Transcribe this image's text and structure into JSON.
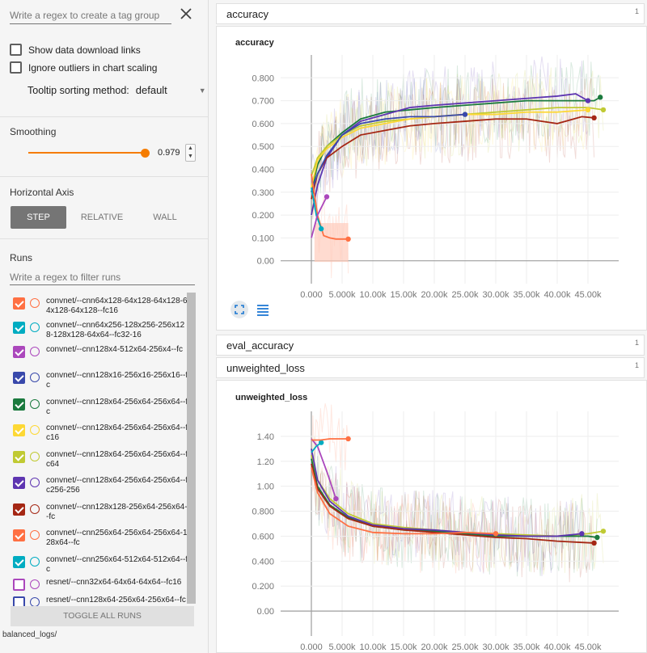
{
  "sidebar": {
    "tag_placeholder": "Write a regex to create a tag group",
    "show_download_label": "Show data download links",
    "ignore_outliers_label": "Ignore outliers in chart scaling",
    "tooltip_label": "Tooltip sorting method:",
    "tooltip_value": "default",
    "smoothing_title": "Smoothing",
    "smoothing_value": "0.979",
    "smoothing_fraction": 0.979,
    "horizontal_axis_title": "Horizontal Axis",
    "axis_buttons": [
      "STEP",
      "RELATIVE",
      "WALL"
    ],
    "axis_selected": "STEP",
    "runs_title": "Runs",
    "runs_placeholder": "Write a regex to filter runs",
    "runs": [
      {
        "name": "convnet/--cnn64x128-64x128-64x128-64x128-64x128--fc16",
        "color": "#ff7043",
        "checked": true
      },
      {
        "name": "convnet/--cnn64x256-128x256-256x128-128x128-64x64--fc32-16",
        "color": "#00acc1",
        "checked": true
      },
      {
        "name": "convnet/--cnn128x4-512x64-256x4--fc",
        "color": "#ab47bc",
        "checked": true
      },
      {
        "name": "convnet/--cnn128x16-256x16-256x16--fc",
        "color": "#3949ab",
        "checked": true
      },
      {
        "name": "convnet/--cnn128x64-256x64-256x64--fc",
        "color": "#1b7a3e",
        "checked": true
      },
      {
        "name": "convnet/--cnn128x64-256x64-256x64--fc16",
        "color": "#fdd835",
        "checked": true
      },
      {
        "name": "convnet/--cnn128x64-256x64-256x64--fc64",
        "color": "#c0ca33",
        "checked": true
      },
      {
        "name": "convnet/--cnn128x64-256x64-256x64--fc256-256",
        "color": "#5e35b1",
        "checked": true
      },
      {
        "name": "convnet/--cnn128x128-256x64-256x64--fc",
        "color": "#a52714",
        "checked": true
      },
      {
        "name": "convnet/--cnn256x64-256x64-256x64-128x64--fc",
        "color": "#ff7043",
        "checked": true
      },
      {
        "name": "convnet/--cnn256x64-512x64-512x64--fc",
        "color": "#00acc1",
        "checked": true
      },
      {
        "name": "resnet/--cnn32x64-64x64-64x64--fc16",
        "color": "#ab47bc",
        "checked": false
      },
      {
        "name": "resnet/--cnn128x64-256x64-256x64--fc",
        "color": "#3949ab",
        "checked": false
      }
    ],
    "toggle_all_label": "TOGGLE ALL RUNS",
    "logdir": "balanced_logs/"
  },
  "panels": [
    {
      "title": "accuracy",
      "count": "1"
    },
    {
      "title": "eval_accuracy",
      "count": "1"
    },
    {
      "title": "unweighted_loss",
      "count": "1"
    }
  ],
  "chart_data": [
    {
      "type": "line",
      "title": "accuracy",
      "xlabel": "",
      "ylabel": "",
      "x_ticks": [
        "0.000",
        "5.000k",
        "10.00k",
        "15.00k",
        "20.00k",
        "25.00k",
        "30.00k",
        "35.00k",
        "40.00k",
        "45.00k"
      ],
      "y_ticks": [
        "0.00",
        "0.100",
        "0.200",
        "0.300",
        "0.400",
        "0.500",
        "0.600",
        "0.700",
        "0.800"
      ],
      "xlim": [
        -5000,
        50000
      ],
      "ylim": [
        -0.1,
        0.9
      ],
      "grid": true,
      "series": [
        {
          "color": "#1b7a3e",
          "x": [
            0,
            1000,
            2500,
            5000,
            8000,
            12000,
            16000,
            20000,
            25000,
            30000,
            35000,
            40000,
            44000,
            46000,
            47000
          ],
          "y": [
            0.3,
            0.42,
            0.5,
            0.56,
            0.62,
            0.65,
            0.66,
            0.67,
            0.68,
            0.69,
            0.7,
            0.7,
            0.7,
            0.7,
            0.715
          ]
        },
        {
          "color": "#5e35b1",
          "x": [
            0,
            1000,
            2500,
            5000,
            8000,
            12000,
            16000,
            20000,
            25000,
            30000,
            35000,
            40000,
            43000,
            45000
          ],
          "y": [
            0.2,
            0.33,
            0.45,
            0.55,
            0.61,
            0.64,
            0.67,
            0.68,
            0.69,
            0.7,
            0.71,
            0.72,
            0.73,
            0.7
          ]
        },
        {
          "color": "#c0ca33",
          "x": [
            0,
            1000,
            2500,
            5000,
            8000,
            12000,
            16000,
            20000,
            25000,
            30000,
            35000,
            40000,
            45000,
            47500
          ],
          "y": [
            0.37,
            0.45,
            0.5,
            0.55,
            0.59,
            0.61,
            0.62,
            0.63,
            0.64,
            0.65,
            0.66,
            0.67,
            0.67,
            0.66
          ]
        },
        {
          "color": "#fdd835",
          "x": [
            0,
            1000,
            2500,
            5000,
            8000,
            12000,
            16000,
            20000,
            25000,
            30000,
            35000,
            40000,
            45000
          ],
          "y": [
            0.32,
            0.44,
            0.49,
            0.54,
            0.58,
            0.6,
            0.62,
            0.63,
            0.64,
            0.64,
            0.65,
            0.65,
            0.66
          ]
        },
        {
          "color": "#a52714",
          "x": [
            0,
            1000,
            2500,
            5000,
            8000,
            12000,
            16000,
            20000,
            25000,
            30000,
            35000,
            40000,
            44000,
            46000
          ],
          "y": [
            0.27,
            0.38,
            0.45,
            0.5,
            0.55,
            0.57,
            0.59,
            0.6,
            0.61,
            0.62,
            0.62,
            0.6,
            0.63,
            0.625
          ]
        },
        {
          "color": "#3949ab",
          "x": [
            0,
            1000,
            2500,
            5000,
            8000,
            12000,
            16000,
            20000,
            25000
          ],
          "y": [
            0.3,
            0.38,
            0.46,
            0.55,
            0.6,
            0.62,
            0.63,
            0.63,
            0.64
          ]
        },
        {
          "color": "#ff7043",
          "x": [
            0,
            1000,
            2000,
            3000,
            4000,
            5000,
            6000
          ],
          "y": [
            0.38,
            0.2,
            0.11,
            0.1,
            0.095,
            0.095,
            0.095
          ]
        },
        {
          "color": "#00acc1",
          "x": [
            0,
            800,
            1600
          ],
          "y": [
            0.32,
            0.2,
            0.14
          ]
        },
        {
          "color": "#ab47bc",
          "x": [
            0,
            1000,
            2500
          ],
          "y": [
            0.1,
            0.2,
            0.28
          ]
        }
      ]
    },
    {
      "type": "line",
      "title": "unweighted_loss",
      "xlabel": "",
      "ylabel": "",
      "x_ticks": [
        "0.000",
        "5.000k",
        "10.00k",
        "15.00k",
        "20.00k",
        "25.00k",
        "30.00k",
        "35.00k",
        "40.00k",
        "45.00k"
      ],
      "y_ticks": [
        "0.00",
        "0.200",
        "0.400",
        "0.600",
        "0.800",
        "1.00",
        "1.20",
        "1.40"
      ],
      "xlim": [
        -5000,
        50000
      ],
      "ylim": [
        -0.2,
        1.6
      ],
      "grid": true,
      "series": [
        {
          "color": "#c0ca33",
          "x": [
            0,
            1000,
            3000,
            6000,
            10000,
            15000,
            20000,
            25000,
            30000,
            35000,
            40000,
            45000,
            47500
          ],
          "y": [
            1.25,
            1.05,
            0.9,
            0.78,
            0.7,
            0.67,
            0.65,
            0.63,
            0.62,
            0.61,
            0.6,
            0.62,
            0.64
          ]
        },
        {
          "color": "#1b7a3e",
          "x": [
            0,
            1000,
            3000,
            6000,
            10000,
            15000,
            20000,
            25000,
            30000,
            35000,
            40000,
            45000,
            46500
          ],
          "y": [
            1.22,
            1.0,
            0.85,
            0.75,
            0.68,
            0.65,
            0.64,
            0.62,
            0.6,
            0.6,
            0.6,
            0.6,
            0.59
          ]
        },
        {
          "color": "#5e35b1",
          "x": [
            0,
            1000,
            3000,
            6000,
            10000,
            15000,
            20000,
            25000,
            30000,
            35000,
            40000,
            44000
          ],
          "y": [
            1.3,
            1.05,
            0.88,
            0.76,
            0.69,
            0.66,
            0.65,
            0.63,
            0.61,
            0.6,
            0.6,
            0.62
          ]
        },
        {
          "color": "#a52714",
          "x": [
            0,
            1000,
            3000,
            6000,
            10000,
            15000,
            20000,
            25000,
            30000,
            35000,
            40000,
            44000,
            46000
          ],
          "y": [
            1.18,
            0.98,
            0.84,
            0.74,
            0.68,
            0.65,
            0.63,
            0.61,
            0.59,
            0.58,
            0.56,
            0.55,
            0.545
          ]
        },
        {
          "color": "#ff7043",
          "x": [
            0,
            1000,
            3000,
            6000,
            10000,
            15000,
            20000,
            25000,
            30000
          ],
          "y": [
            1.15,
            0.95,
            0.78,
            0.68,
            0.63,
            0.62,
            0.62,
            0.63,
            0.62
          ]
        },
        {
          "color": "#ab47bc",
          "x": [
            0,
            1000,
            2500,
            4000
          ],
          "y": [
            1.38,
            1.32,
            1.12,
            0.9
          ]
        },
        {
          "color": "#00acc1",
          "x": [
            0,
            800,
            1600
          ],
          "y": [
            1.27,
            1.32,
            1.35
          ]
        },
        {
          "color": "#ff7043",
          "x": [
            0,
            1500,
            3000,
            4500,
            6000
          ],
          "y": [
            1.37,
            1.37,
            1.38,
            1.38,
            1.38
          ]
        }
      ]
    }
  ]
}
